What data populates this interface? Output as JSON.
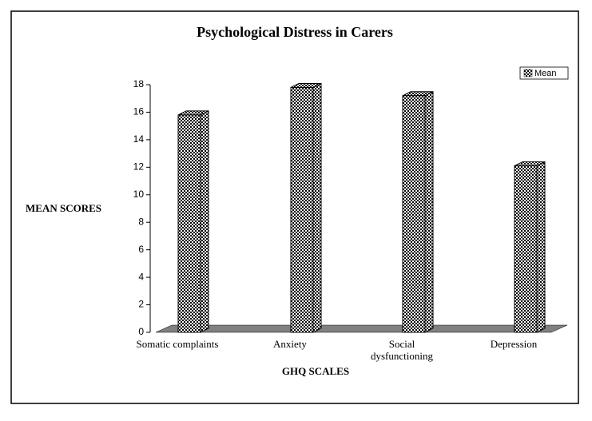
{
  "chart_data": {
    "type": "bar",
    "title": "Psychological Distress in Carers",
    "x_label": "GHQ SCALES",
    "y_label": "MEAN SCORES",
    "categories": [
      "Somatic complaints",
      "Anxiety",
      "Social dysfunctioning",
      "Depression"
    ],
    "series": [
      {
        "name": "Mean",
        "color": "#000000",
        "values": [
          15.8,
          17.8,
          17.2,
          12.1
        ]
      }
    ],
    "ylim": [
      0,
      18
    ],
    "yticks": [
      0,
      2,
      4,
      6,
      8,
      10,
      12,
      14,
      16,
      18
    ],
    "grid": false
  }
}
